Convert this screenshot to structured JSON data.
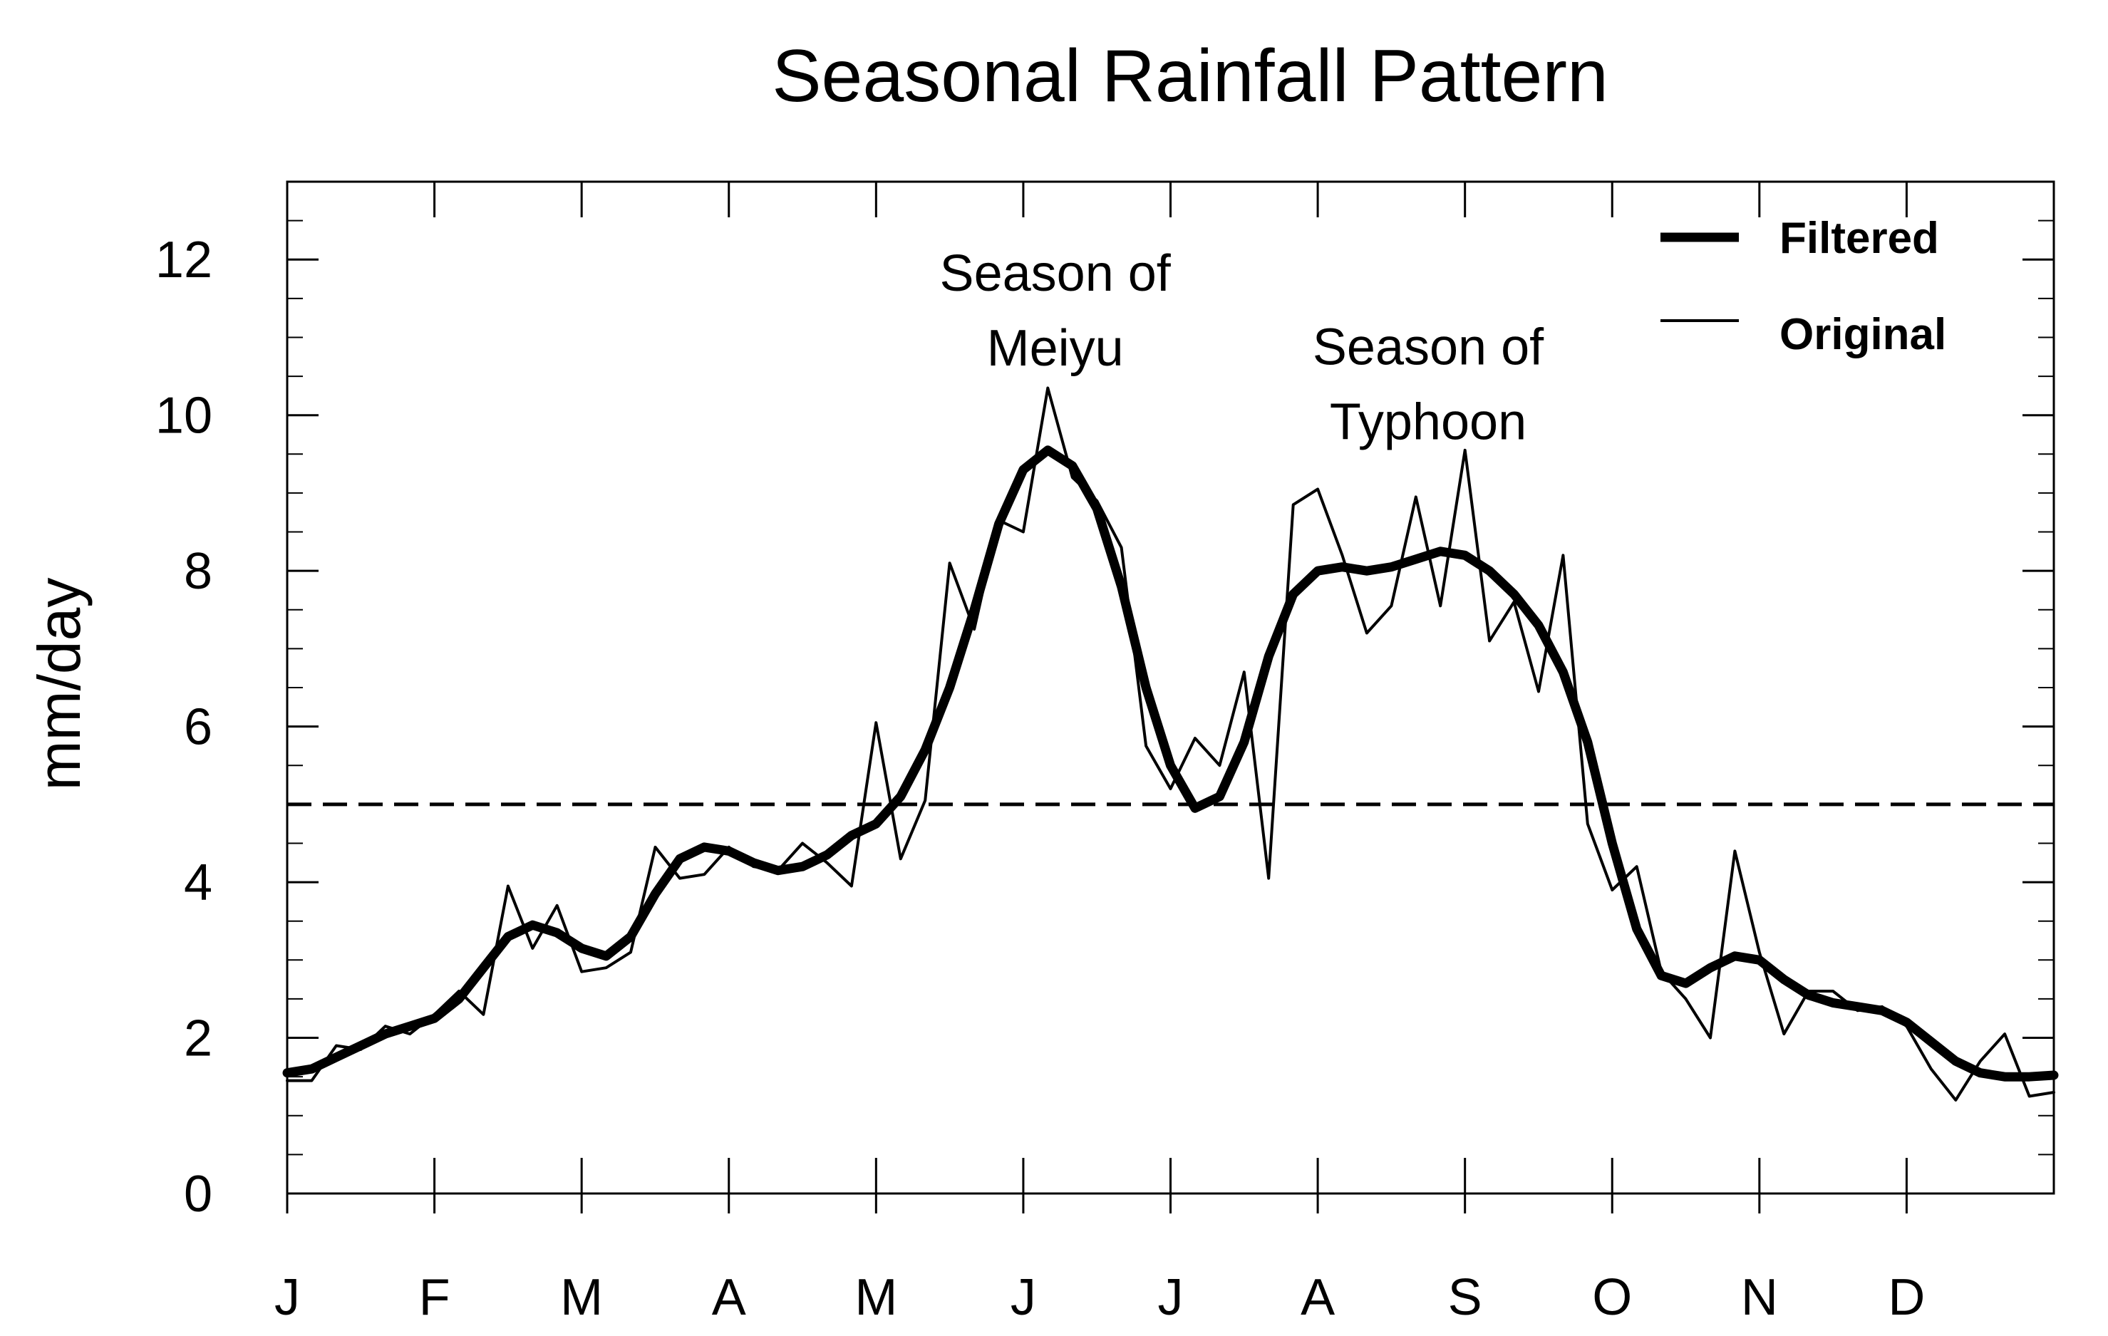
{
  "chart_data": {
    "type": "line",
    "title": "Seasonal Rainfall Pattern",
    "xlabel": "",
    "ylabel": "mm/day",
    "xlim": [
      0,
      72
    ],
    "ylim": [
      0,
      13
    ],
    "x_tick_labels": [
      "J",
      "F",
      "M",
      "A",
      "M",
      "J",
      "J",
      "A",
      "S",
      "O",
      "N",
      "D"
    ],
    "y_ticks": [
      0,
      2,
      4,
      6,
      8,
      10,
      12
    ],
    "y_tick_labels": [
      "0",
      "2",
      "4",
      "6",
      "8",
      "10",
      "12"
    ],
    "threshold": {
      "value": 5,
      "style": "dashed"
    },
    "annotations": [
      {
        "lines": [
          "Season of",
          "Meiyu"
        ],
        "x": 31.3,
        "y": 11.6
      },
      {
        "lines": [
          "Season of",
          "Typhoon"
        ],
        "x": 46.5,
        "y": 10.65
      }
    ],
    "legend": {
      "position": "top-right",
      "entries": [
        "Filtered",
        "Original"
      ]
    },
    "series": [
      {
        "name": "Filtered",
        "style": "thick",
        "x": [
          0,
          1,
          2,
          3,
          4,
          5,
          6,
          7,
          8,
          9,
          10,
          11,
          12,
          13,
          14,
          15,
          16,
          17,
          18,
          19,
          20,
          21,
          22,
          23,
          24,
          25,
          26,
          27,
          28,
          29,
          30,
          31,
          32,
          33,
          34,
          35,
          36,
          37,
          38,
          39,
          40,
          41,
          42,
          43,
          44,
          45,
          46,
          47,
          48,
          49,
          50,
          51,
          52,
          53,
          54,
          55,
          56,
          57,
          58,
          59,
          60,
          61,
          62,
          63,
          64,
          65,
          66,
          67,
          68,
          69,
          70,
          71,
          72
        ],
        "values": [
          1.55,
          1.6,
          1.75,
          1.9,
          2.05,
          2.15,
          2.25,
          2.5,
          2.9,
          3.3,
          3.45,
          3.35,
          3.15,
          3.05,
          3.3,
          3.85,
          4.3,
          4.45,
          4.4,
          4.25,
          4.15,
          4.2,
          4.35,
          4.6,
          4.75,
          5.1,
          5.7,
          6.5,
          7.5,
          8.6,
          9.3,
          9.55,
          9.35,
          8.8,
          7.8,
          6.5,
          5.5,
          4.95,
          5.1,
          5.8,
          6.9,
          7.7,
          8.0,
          8.05,
          8.0,
          8.05,
          8.15,
          8.25,
          8.2,
          8.0,
          7.7,
          7.3,
          6.7,
          5.8,
          4.5,
          3.4,
          2.8,
          2.7,
          2.9,
          3.05,
          3.0,
          2.75,
          2.55,
          2.45,
          2.4,
          2.35,
          2.2,
          1.95,
          1.7,
          1.55,
          1.5,
          1.5,
          1.52
        ]
      },
      {
        "name": "Original",
        "style": "thin",
        "x": [
          0,
          1,
          2,
          3,
          4,
          5,
          6,
          7,
          8,
          9,
          10,
          11,
          12,
          13,
          14,
          15,
          16,
          17,
          18,
          19,
          20,
          21,
          22,
          23,
          24,
          25,
          26,
          27,
          28,
          29,
          30,
          31,
          32,
          33,
          34,
          35,
          36,
          37,
          38,
          39,
          40,
          41,
          42,
          43,
          44,
          45,
          46,
          47,
          48,
          49,
          50,
          51,
          52,
          53,
          54,
          55,
          56,
          57,
          58,
          59,
          60,
          61,
          62,
          63,
          64,
          65,
          66,
          67,
          68,
          69,
          70,
          71,
          72
        ],
        "values": [
          1.45,
          1.45,
          1.9,
          1.85,
          2.15,
          2.05,
          2.3,
          2.6,
          2.3,
          3.95,
          3.15,
          3.7,
          2.85,
          2.9,
          3.1,
          4.45,
          4.05,
          4.1,
          4.45,
          4.2,
          4.15,
          4.5,
          4.25,
          3.95,
          6.05,
          4.3,
          5.05,
          8.1,
          7.25,
          8.65,
          8.5,
          10.35,
          9.2,
          8.9,
          8.3,
          5.75,
          5.2,
          5.85,
          5.5,
          6.7,
          4.05,
          8.85,
          9.05,
          8.2,
          7.2,
          7.55,
          8.95,
          7.55,
          9.55,
          7.1,
          7.6,
          6.45,
          8.2,
          4.75,
          3.9,
          4.2,
          2.85,
          2.5,
          2.0,
          4.4,
          3.1,
          2.05,
          2.6,
          2.6,
          2.35,
          2.4,
          2.15,
          1.6,
          1.2,
          1.7,
          2.05,
          1.25,
          1.3
        ]
      }
    ]
  }
}
